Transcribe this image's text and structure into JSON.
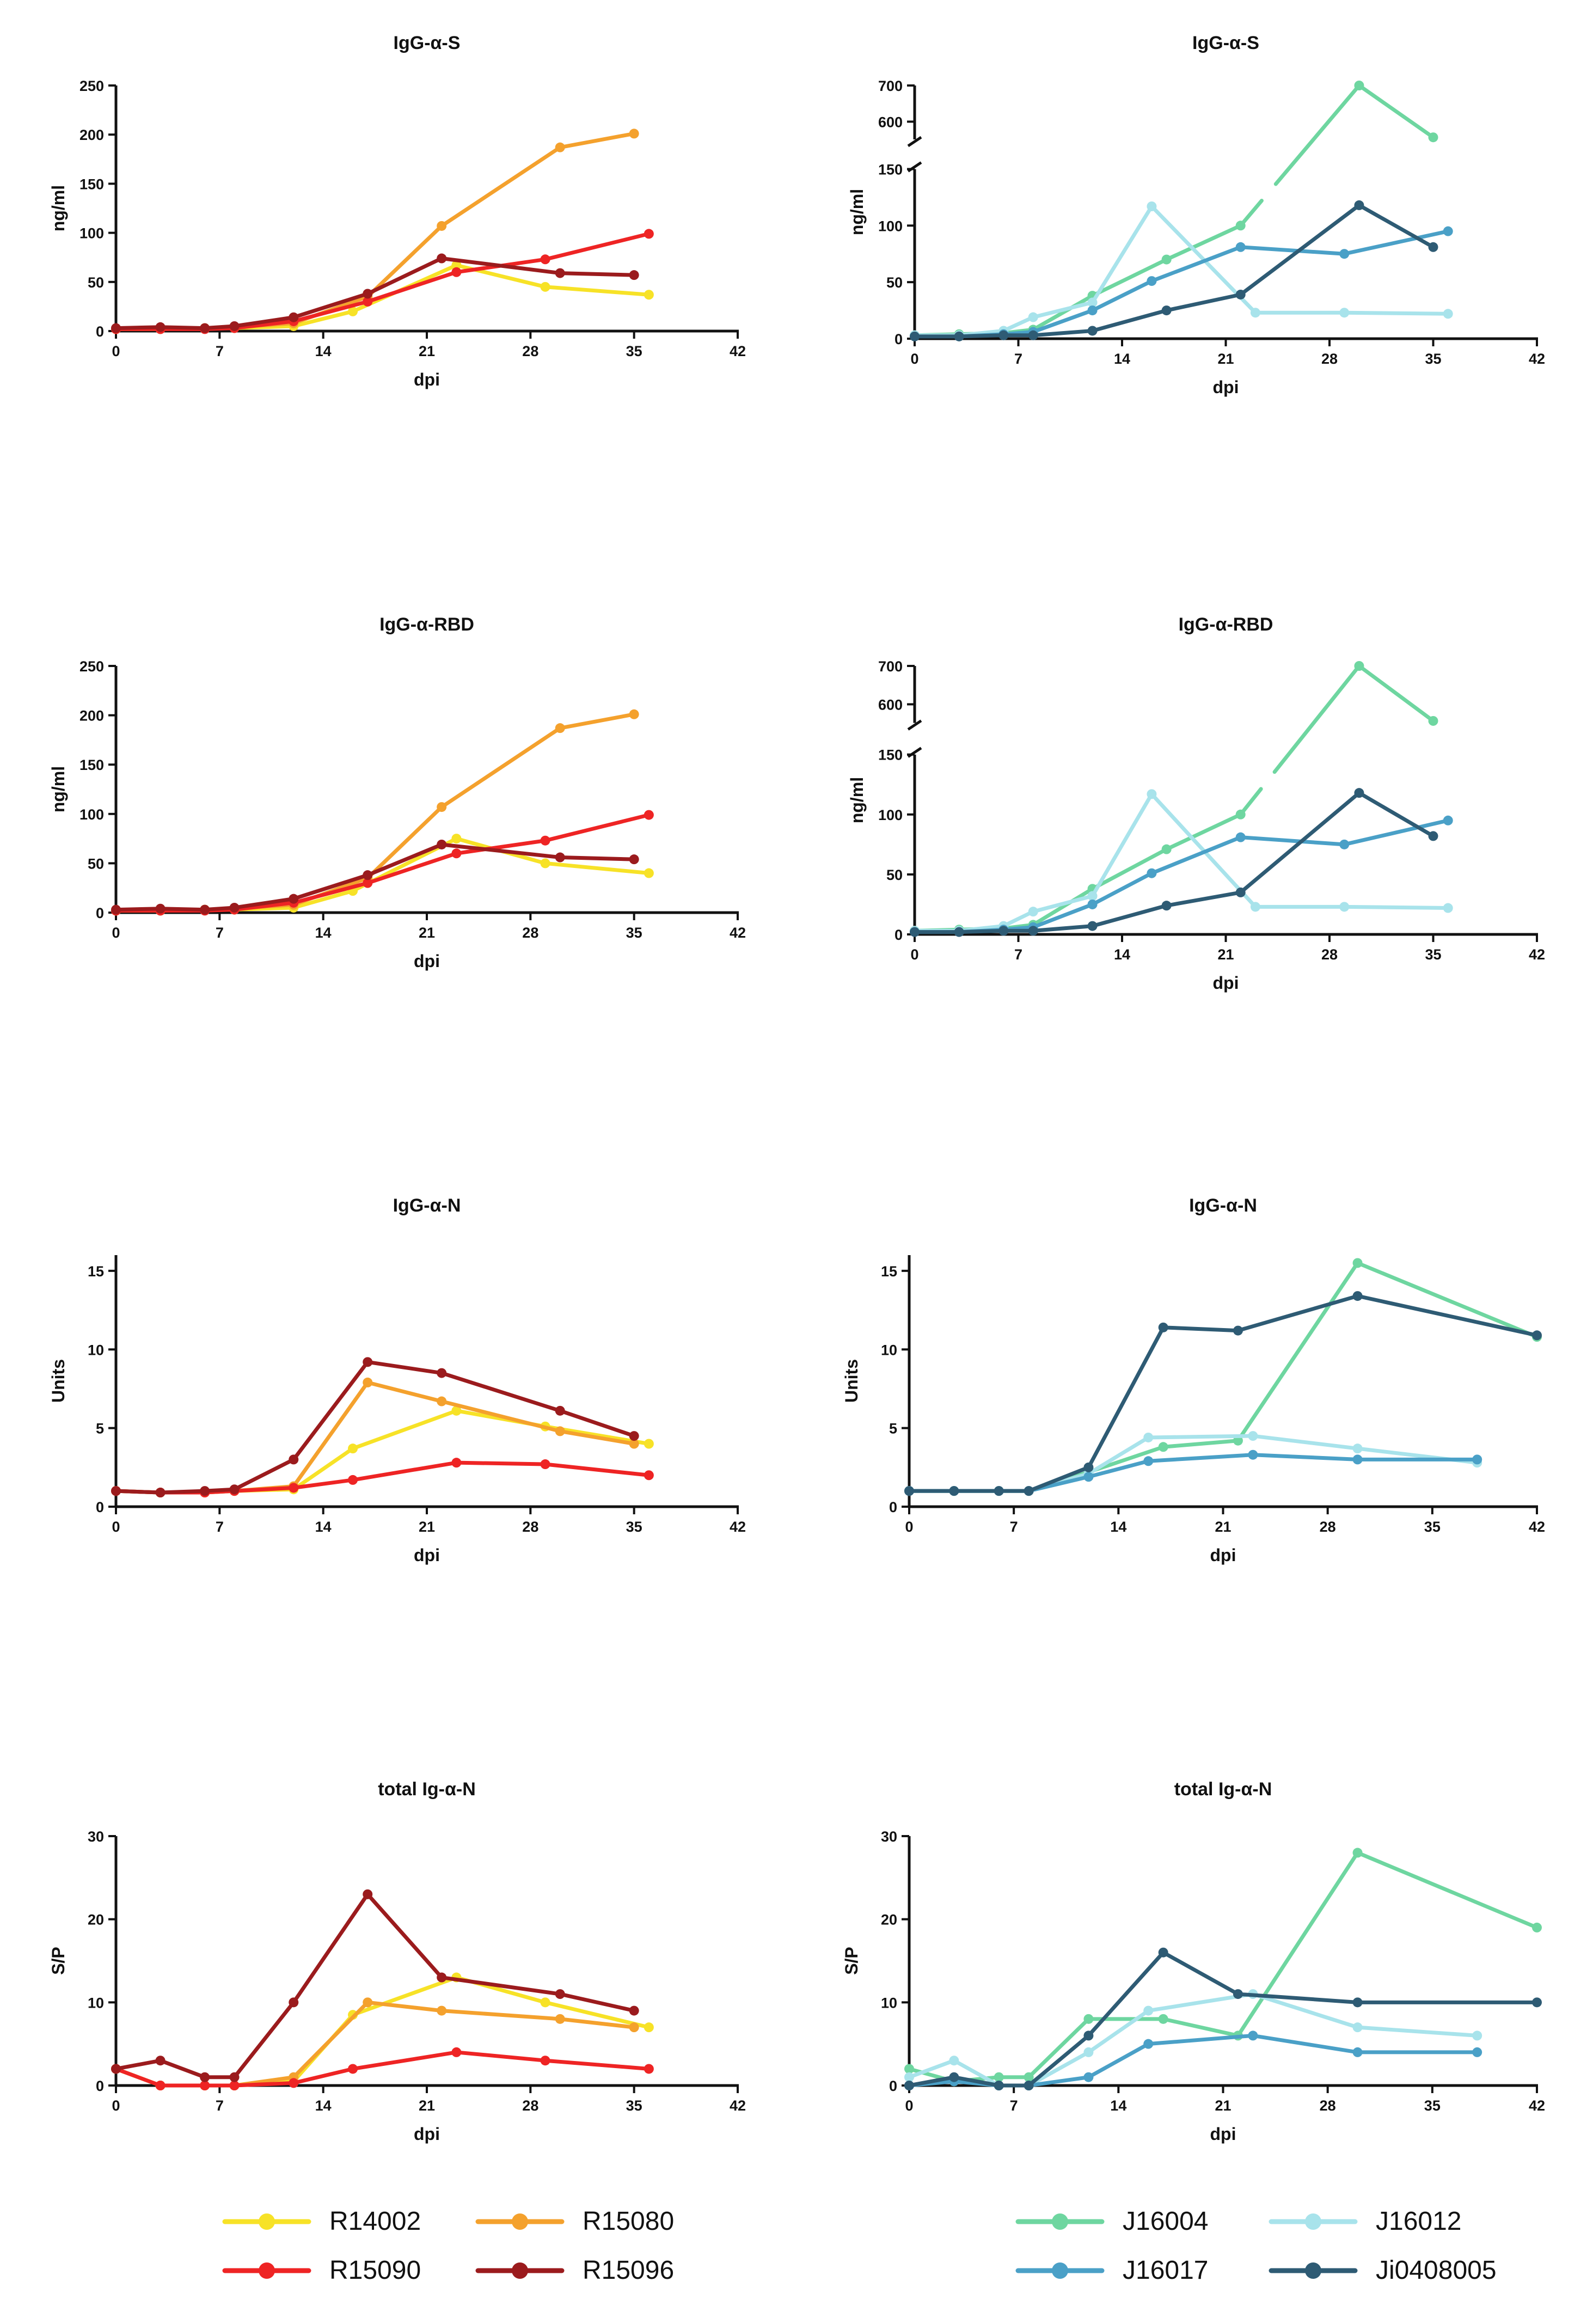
{
  "colors": {
    "R14002": "#f7e227",
    "R15080": "#f4a12d",
    "R15090": "#ee2424",
    "R15096": "#9b1b1d",
    "J16004": "#6ed6a0",
    "J16012": "#a8e3eb",
    "J16017": "#4aa0c7",
    "Ji0408005": "#2e5b74"
  },
  "legends": {
    "left": [
      "R14002",
      "R15080",
      "R15090",
      "R15096"
    ],
    "right": [
      "J16004",
      "J16012",
      "J16017",
      "Ji0408005"
    ]
  },
  "chart_data": [
    {
      "id": "s-left",
      "type": "line",
      "title": "IgG-α-S",
      "xlabel": "dpi",
      "ylabel": "ng/ml",
      "xlim": [
        0,
        42
      ],
      "xticks": [
        0,
        7,
        14,
        21,
        28,
        35,
        42
      ],
      "ylim": [
        0,
        250
      ],
      "yticks": [
        0,
        50,
        100,
        150,
        200,
        250
      ],
      "series": [
        {
          "name": "R14002",
          "x": [
            0,
            3,
            6,
            8,
            12,
            16,
            23,
            29,
            36
          ],
          "y": [
            2,
            2,
            3,
            3,
            5,
            20,
            67,
            45,
            37
          ]
        },
        {
          "name": "R15080",
          "x": [
            0,
            3,
            6,
            8,
            12,
            17,
            22,
            30,
            35
          ],
          "y": [
            2,
            2,
            3,
            4,
            8,
            35,
            107,
            187,
            201
          ]
        },
        {
          "name": "R15090",
          "x": [
            0,
            3,
            6,
            8,
            12,
            17,
            23,
            29,
            36
          ],
          "y": [
            2,
            2,
            2,
            3,
            10,
            30,
            60,
            73,
            99
          ]
        },
        {
          "name": "R15096",
          "x": [
            0,
            3,
            6,
            8,
            12,
            17,
            22,
            30,
            35
          ],
          "y": [
            3,
            4,
            3,
            5,
            14,
            38,
            74,
            59,
            57
          ]
        }
      ]
    },
    {
      "id": "s-right",
      "type": "line",
      "title": "IgG-α-S",
      "xlabel": "dpi",
      "ylabel": "ng/ml",
      "xlim": [
        0,
        42
      ],
      "xticks": [
        0,
        7,
        14,
        21,
        28,
        35,
        42
      ],
      "ylim": [
        0,
        700
      ],
      "yticks": [
        0,
        50,
        100,
        150,
        600,
        700
      ],
      "ybreak": [
        150,
        560
      ],
      "series": [
        {
          "name": "J16004",
          "x": [
            0,
            3,
            6,
            8,
            12,
            17,
            22,
            30,
            35
          ],
          "y": [
            3,
            4,
            5,
            8,
            38,
            70,
            100,
            700,
            545
          ]
        },
        {
          "name": "J16012",
          "x": [
            0,
            3,
            6,
            8,
            12,
            16,
            23,
            29,
            36
          ],
          "y": [
            3,
            3,
            7,
            19,
            32,
            117,
            23,
            23,
            22
          ]
        },
        {
          "name": "J16017",
          "x": [
            0,
            3,
            6,
            8,
            12,
            16,
            22,
            29,
            36
          ],
          "y": [
            2,
            2,
            4,
            6,
            25,
            51,
            81,
            75,
            95
          ]
        },
        {
          "name": "Ji0408005",
          "x": [
            0,
            3,
            6,
            8,
            12,
            17,
            22,
            30,
            35
          ],
          "y": [
            2,
            2,
            3,
            3,
            7,
            25,
            39,
            118,
            81
          ]
        }
      ]
    },
    {
      "id": "rbd-left",
      "type": "line",
      "title": "IgG-α-RBD",
      "xlabel": "dpi",
      "ylabel": "ng/ml",
      "xlim": [
        0,
        42
      ],
      "xticks": [
        0,
        7,
        14,
        21,
        28,
        35,
        42
      ],
      "ylim": [
        0,
        250
      ],
      "yticks": [
        0,
        50,
        100,
        150,
        200,
        250
      ],
      "series": [
        {
          "name": "R14002",
          "x": [
            0,
            3,
            6,
            8,
            12,
            16,
            23,
            29,
            36
          ],
          "y": [
            2,
            2,
            3,
            3,
            5,
            22,
            75,
            50,
            40
          ]
        },
        {
          "name": "R15080",
          "x": [
            0,
            3,
            6,
            8,
            12,
            17,
            22,
            30,
            35
          ],
          "y": [
            2,
            2,
            3,
            4,
            8,
            35,
            107,
            187,
            201
          ]
        },
        {
          "name": "R15090",
          "x": [
            0,
            3,
            6,
            8,
            12,
            17,
            23,
            29,
            36
          ],
          "y": [
            2,
            2,
            2,
            3,
            10,
            30,
            60,
            73,
            99
          ]
        },
        {
          "name": "R15096",
          "x": [
            0,
            3,
            6,
            8,
            12,
            17,
            22,
            30,
            35
          ],
          "y": [
            3,
            4,
            3,
            5,
            14,
            38,
            69,
            56,
            54
          ]
        }
      ]
    },
    {
      "id": "rbd-right",
      "type": "line",
      "title": "IgG-α-RBD",
      "xlabel": "dpi",
      "ylabel": "ng/ml",
      "xlim": [
        0,
        42
      ],
      "xticks": [
        0,
        7,
        14,
        21,
        28,
        35,
        42
      ],
      "ylim": [
        0,
        700
      ],
      "yticks": [
        0,
        50,
        100,
        150,
        600,
        700
      ],
      "ybreak": [
        150,
        560
      ],
      "series": [
        {
          "name": "J16004",
          "x": [
            0,
            3,
            6,
            8,
            12,
            17,
            22,
            30,
            35
          ],
          "y": [
            3,
            4,
            5,
            8,
            38,
            71,
            100,
            700,
            545
          ]
        },
        {
          "name": "J16012",
          "x": [
            0,
            3,
            6,
            8,
            12,
            16,
            23,
            29,
            36
          ],
          "y": [
            3,
            3,
            7,
            19,
            32,
            117,
            23,
            23,
            22
          ]
        },
        {
          "name": "J16017",
          "x": [
            0,
            3,
            6,
            8,
            12,
            16,
            22,
            29,
            36
          ],
          "y": [
            2,
            2,
            4,
            6,
            25,
            51,
            81,
            75,
            95
          ]
        },
        {
          "name": "Ji0408005",
          "x": [
            0,
            3,
            6,
            8,
            12,
            17,
            22,
            30,
            35
          ],
          "y": [
            2,
            2,
            3,
            3,
            7,
            24,
            35,
            118,
            82
          ]
        }
      ]
    },
    {
      "id": "n-left",
      "type": "line",
      "title": "IgG-α-N",
      "xlabel": "dpi",
      "ylabel": "Units",
      "xlim": [
        0,
        42
      ],
      "xticks": [
        0,
        7,
        14,
        21,
        28,
        35,
        42
      ],
      "ylim": [
        0,
        16
      ],
      "yticks": [
        0,
        5,
        10,
        15
      ],
      "series": [
        {
          "name": "R14002",
          "x": [
            0,
            3,
            6,
            8,
            12,
            16,
            23,
            29,
            36
          ],
          "y": [
            1,
            0.9,
            0.9,
            1,
            1.1,
            3.7,
            6.1,
            5.1,
            4
          ]
        },
        {
          "name": "R15080",
          "x": [
            0,
            3,
            6,
            8,
            12,
            17,
            22,
            30,
            35
          ],
          "y": [
            1,
            0.9,
            0.9,
            1,
            1.3,
            7.9,
            6.7,
            4.8,
            4
          ]
        },
        {
          "name": "R15090",
          "x": [
            0,
            3,
            6,
            8,
            12,
            16,
            23,
            29,
            36
          ],
          "y": [
            1,
            0.9,
            0.9,
            1,
            1.2,
            1.7,
            2.8,
            2.7,
            2
          ]
        },
        {
          "name": "R15096",
          "x": [
            0,
            3,
            6,
            8,
            12,
            17,
            22,
            30,
            35
          ],
          "y": [
            1,
            0.9,
            1,
            1.1,
            3,
            9.2,
            8.5,
            6.1,
            4.5
          ]
        }
      ]
    },
    {
      "id": "n-right",
      "type": "line",
      "title": "IgG-α-N",
      "xlabel": "dpi",
      "ylabel": "Units",
      "xlim": [
        0,
        42
      ],
      "xticks": [
        0,
        7,
        14,
        21,
        28,
        35,
        42
      ],
      "ylim": [
        0,
        16
      ],
      "yticks": [
        0,
        5,
        10,
        15
      ],
      "series": [
        {
          "name": "J16004",
          "x": [
            0,
            3,
            6,
            8,
            12,
            17,
            22,
            30,
            42
          ],
          "y": [
            1,
            1,
            1,
            1,
            2.2,
            3.8,
            4.2,
            15.5,
            10.8
          ]
        },
        {
          "name": "J16012",
          "x": [
            0,
            3,
            6,
            8,
            12,
            16,
            23,
            30,
            38
          ],
          "y": [
            1,
            1,
            1,
            1,
            2.1,
            4.4,
            4.5,
            3.7,
            2.8
          ]
        },
        {
          "name": "J16017",
          "x": [
            0,
            3,
            6,
            8,
            12,
            16,
            23,
            30,
            38
          ],
          "y": [
            1,
            1,
            1,
            1,
            1.9,
            2.9,
            3.3,
            3,
            3
          ]
        },
        {
          "name": "Ji0408005",
          "x": [
            0,
            3,
            6,
            8,
            12,
            17,
            22,
            30,
            42
          ],
          "y": [
            1,
            1,
            1,
            1,
            2.5,
            11.4,
            11.2,
            13.4,
            10.9
          ]
        }
      ]
    },
    {
      "id": "tot-left",
      "type": "line",
      "title": "total Ig-α-N",
      "xlabel": "dpi",
      "ylabel": "S/P",
      "xlim": [
        0,
        42
      ],
      "xticks": [
        0,
        7,
        14,
        21,
        28,
        35,
        42
      ],
      "ylim": [
        0,
        30
      ],
      "yticks": [
        0,
        10,
        20,
        30
      ],
      "series": [
        {
          "name": "R14002",
          "x": [
            0,
            3,
            6,
            8,
            12,
            16,
            23,
            29,
            36
          ],
          "y": [
            2,
            0,
            0,
            0,
            0.5,
            8.5,
            13,
            10,
            7
          ]
        },
        {
          "name": "R15080",
          "x": [
            0,
            3,
            6,
            8,
            12,
            17,
            22,
            30,
            35
          ],
          "y": [
            2,
            0,
            0,
            0,
            1,
            10,
            9,
            8,
            7
          ]
        },
        {
          "name": "R15090",
          "x": [
            0,
            3,
            6,
            8,
            12,
            16,
            23,
            29,
            36
          ],
          "y": [
            2,
            0,
            0,
            0,
            0.3,
            2,
            4,
            3,
            2
          ]
        },
        {
          "name": "R15096",
          "x": [
            0,
            3,
            6,
            8,
            12,
            17,
            22,
            30,
            35
          ],
          "y": [
            2,
            3,
            1,
            1,
            10,
            23,
            13,
            11,
            9
          ]
        }
      ]
    },
    {
      "id": "tot-right",
      "type": "line",
      "title": "total Ig-α-N",
      "xlabel": "dpi",
      "ylabel": "S/P",
      "xlim": [
        0,
        42
      ],
      "xticks": [
        0,
        7,
        14,
        21,
        28,
        35,
        42
      ],
      "ylim": [
        0,
        30
      ],
      "yticks": [
        0,
        10,
        20,
        30
      ],
      "series": [
        {
          "name": "J16004",
          "x": [
            0,
            3,
            6,
            8,
            12,
            17,
            22,
            30,
            42
          ],
          "y": [
            2,
            0.5,
            1,
            1,
            8,
            8,
            6,
            28,
            19
          ]
        },
        {
          "name": "J16012",
          "x": [
            0,
            3,
            6,
            8,
            12,
            16,
            23,
            30,
            38
          ],
          "y": [
            1,
            3,
            0,
            0,
            4,
            9,
            11,
            7,
            6
          ]
        },
        {
          "name": "J16017",
          "x": [
            0,
            3,
            6,
            8,
            12,
            16,
            23,
            30,
            38
          ],
          "y": [
            0,
            0.5,
            0,
            0,
            1,
            5,
            6,
            4,
            4
          ]
        },
        {
          "name": "Ji0408005",
          "x": [
            0,
            3,
            6,
            8,
            12,
            17,
            22,
            30,
            42
          ],
          "y": [
            0,
            1,
            0,
            0,
            6,
            16,
            11,
            10,
            10
          ]
        }
      ]
    }
  ]
}
